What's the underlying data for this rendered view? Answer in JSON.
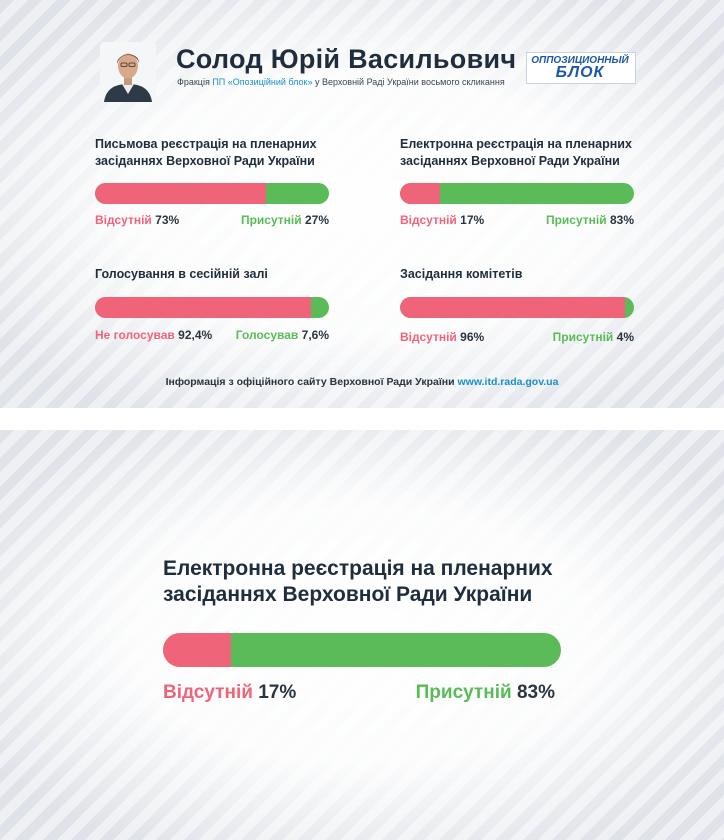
{
  "header": {
    "name": "Солод Юрій Васильович",
    "subtitle_prefix": "Фракція ",
    "subtitle_party": "ПП «Опозиційний блок»",
    "subtitle_suffix": " у Верховній Раді України восьмого скликання",
    "logo_line1": "ОППОЗИЦИОННЫЙ",
    "logo_line2": "БЛОК"
  },
  "stats": [
    {
      "title": "Письмова реєстрація на пленарних засіданнях Верховної Ради України",
      "left_label": "Відсутній",
      "left_value": "73%",
      "right_label": "Присутній",
      "right_value": "27%",
      "left_fraction": 0.73
    },
    {
      "title": "Електронна реєстрація на пленарних засіданнях Верховної Ради України",
      "left_label": "Відсутній",
      "left_value": "17%",
      "right_label": "Присутній",
      "right_value": "83%",
      "left_fraction": 0.17
    },
    {
      "title": "Голосування в сесійній залі",
      "left_label": "Не голосував",
      "left_value": "92,4%",
      "right_label": "Голосував",
      "right_value": "7,6%",
      "left_fraction": 0.924
    },
    {
      "title": "Засідання комітетів",
      "left_label": "Відсутній",
      "left_value": "96%",
      "right_label": "Присутній",
      "right_value": "4%",
      "left_fraction": 0.96
    }
  ],
  "footer": {
    "text": "Інформація з офіційного сайту Верховної Ради України ",
    "url": "www.itd.rada.gov.ua"
  },
  "detail": {
    "title_line1": "Електронна реєстрація на пленарних",
    "title_line2": "засіданнях Верховної Ради України",
    "left_label": "Відсутній",
    "left_value": "17%",
    "right_label": "Присутній",
    "right_value": "83%",
    "left_fraction": 0.17
  },
  "colors": {
    "absent": "#f0647a",
    "present": "#5bbb58",
    "accent_link": "#1a8fc8",
    "logo_blue": "#1d56a8"
  },
  "icons": {
    "avatar": "portrait-photo",
    "logo": "party-logo"
  }
}
